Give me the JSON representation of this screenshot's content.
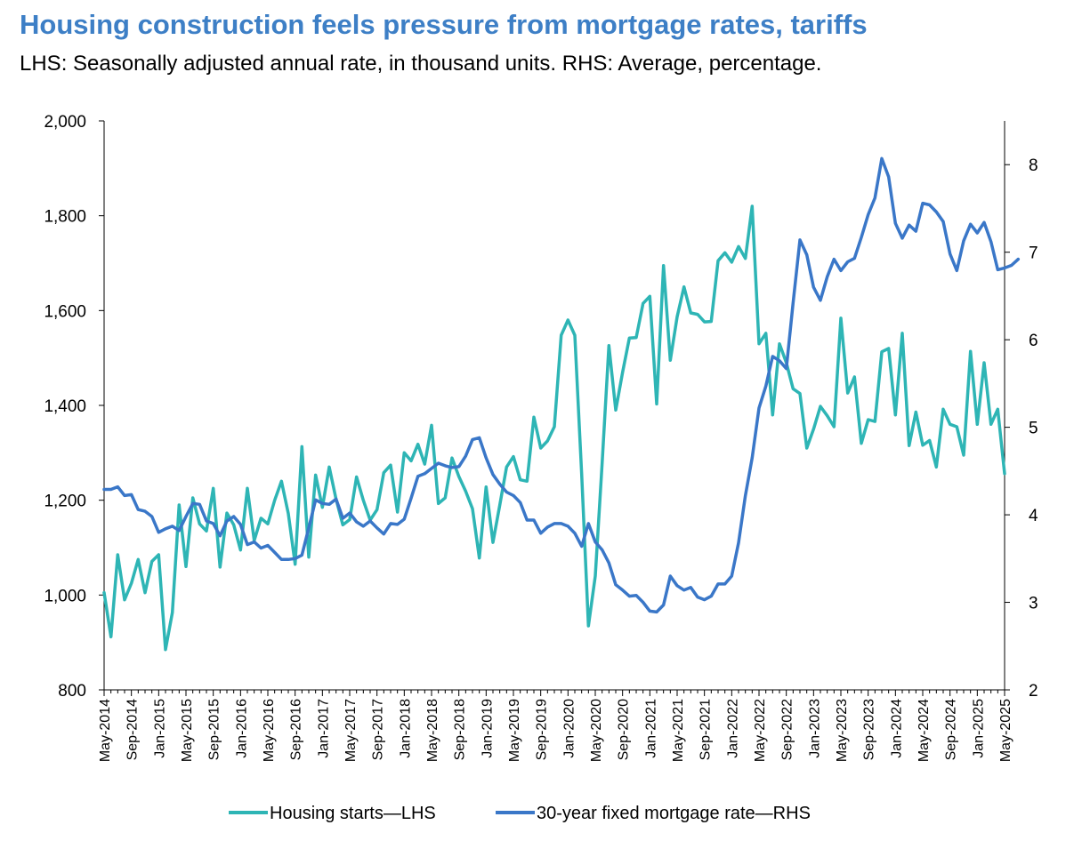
{
  "chart_data": {
    "type": "line",
    "title": "Housing construction feels pressure from mortgage rates, tariffs",
    "subtitle": "LHS: Seasonally adjusted annual rate, in thousand units. RHS: Average, percentage.",
    "left_axis": {
      "ylim": [
        800,
        2000
      ],
      "ticks": [
        "800",
        "1,000",
        "1,200",
        "1,400",
        "1,600",
        "1,800",
        "2,000"
      ],
      "tick_values": [
        800,
        1000,
        1200,
        1400,
        1600,
        1800,
        2000
      ]
    },
    "right_axis": {
      "ylim": [
        2,
        8.5
      ],
      "ticks": [
        "2",
        "3",
        "4",
        "5",
        "6",
        "7",
        "8"
      ],
      "tick_values": [
        2,
        3,
        4,
        5,
        6,
        7,
        8
      ]
    },
    "x_tick_labels": [
      "May-2014",
      "Sep-2014",
      "Jan-2015",
      "May-2015",
      "Sep-2015",
      "Jan-2016",
      "May-2016",
      "Sep-2016",
      "Jan-2017",
      "May-2017",
      "Sep-2017",
      "Jan-2018",
      "May-2018",
      "Sep-2018",
      "Jan-2019",
      "May-2019",
      "Sep-2019",
      "Jan-2020",
      "May-2020",
      "Sep-2020",
      "Jan-2021",
      "May-2021",
      "Sep-2021",
      "Jan-2022",
      "May-2022",
      "Sep-2022",
      "Jan-2023",
      "May-2023",
      "Sep-2023",
      "Jan-2024",
      "May-2024",
      "Sep-2024",
      "Jan-2025",
      "May-2025"
    ],
    "x_start": "May-2014",
    "x_months": 133,
    "series": [
      {
        "name": "Housing starts—LHS",
        "axis": "left",
        "color": "#2eb5b5",
        "values": [
          1005,
          912,
          1085,
          990,
          1025,
          1075,
          1005,
          1071,
          1085,
          885,
          963,
          1190,
          1060,
          1205,
          1150,
          1135,
          1225,
          1059,
          1173,
          1148,
          1095,
          1225,
          1115,
          1162,
          1150,
          1200,
          1240,
          1172,
          1065,
          1313,
          1080,
          1253,
          1185,
          1270,
          1202,
          1148,
          1159,
          1249,
          1200,
          1158,
          1180,
          1258,
          1274,
          1175,
          1300,
          1283,
          1318,
          1276,
          1358,
          1193,
          1205,
          1289,
          1250,
          1219,
          1182,
          1078,
          1228,
          1111,
          1190,
          1270,
          1292,
          1243,
          1240,
          1375,
          1310,
          1325,
          1355,
          1548,
          1580,
          1548,
          1255,
          935,
          1040,
          1278,
          1526,
          1390,
          1470,
          1542,
          1543,
          1615,
          1630,
          1403,
          1695,
          1495,
          1587,
          1650,
          1595,
          1592,
          1576,
          1577,
          1705,
          1722,
          1702,
          1735,
          1710,
          1820,
          1530,
          1552,
          1380,
          1530,
          1490,
          1435,
          1425,
          1310,
          1350,
          1398,
          1378,
          1355,
          1584,
          1426,
          1460,
          1320,
          1370,
          1366,
          1513,
          1520,
          1380,
          1552,
          1315,
          1386,
          1316,
          1326,
          1270,
          1392,
          1360,
          1355,
          1295,
          1514,
          1360,
          1490,
          1360,
          1392,
          1256
        ]
      },
      {
        "name": "30-year fixed mortgage rate—RHS",
        "axis": "right",
        "color": "#3a77c8",
        "values": [
          4.29,
          4.29,
          4.32,
          4.22,
          4.23,
          4.06,
          4.04,
          3.98,
          3.8,
          3.84,
          3.87,
          3.82,
          3.98,
          4.13,
          4.12,
          3.93,
          3.9,
          3.76,
          3.93,
          3.98,
          3.89,
          3.66,
          3.69,
          3.62,
          3.65,
          3.57,
          3.49,
          3.49,
          3.5,
          3.54,
          3.85,
          4.17,
          4.13,
          4.12,
          4.18,
          3.96,
          4.02,
          3.92,
          3.87,
          3.93,
          3.85,
          3.78,
          3.9,
          3.89,
          3.95,
          4.19,
          4.44,
          4.47,
          4.53,
          4.59,
          4.56,
          4.54,
          4.55,
          4.67,
          4.86,
          4.88,
          4.65,
          4.46,
          4.35,
          4.26,
          4.22,
          4.14,
          3.94,
          3.94,
          3.79,
          3.86,
          3.9,
          3.9,
          3.87,
          3.79,
          3.64,
          3.9,
          3.69,
          3.6,
          3.45,
          3.2,
          3.14,
          3.07,
          3.08,
          3.0,
          2.9,
          2.89,
          2.97,
          3.3,
          3.19,
          3.14,
          3.17,
          3.06,
          3.03,
          3.07,
          3.21,
          3.21,
          3.3,
          3.68,
          4.22,
          4.65,
          5.22,
          5.47,
          5.81,
          5.76,
          5.67,
          6.42,
          7.14,
          6.97,
          6.6,
          6.45,
          6.72,
          6.92,
          6.79,
          6.89,
          6.93,
          7.17,
          7.43,
          7.62,
          8.07,
          7.86,
          7.33,
          7.16,
          7.31,
          7.24,
          7.56,
          7.54,
          7.46,
          7.35,
          6.98,
          6.79,
          7.13,
          7.32,
          7.22,
          7.34,
          7.12,
          6.8,
          6.82,
          6.85,
          6.92
        ]
      }
    ],
    "legend": [
      {
        "label": "Housing starts—LHS",
        "color": "#2eb5b5"
      },
      {
        "label": "30-year fixed mortgage rate—RHS",
        "color": "#3a77c8"
      }
    ],
    "legend_position": "bottom",
    "grid": false
  }
}
